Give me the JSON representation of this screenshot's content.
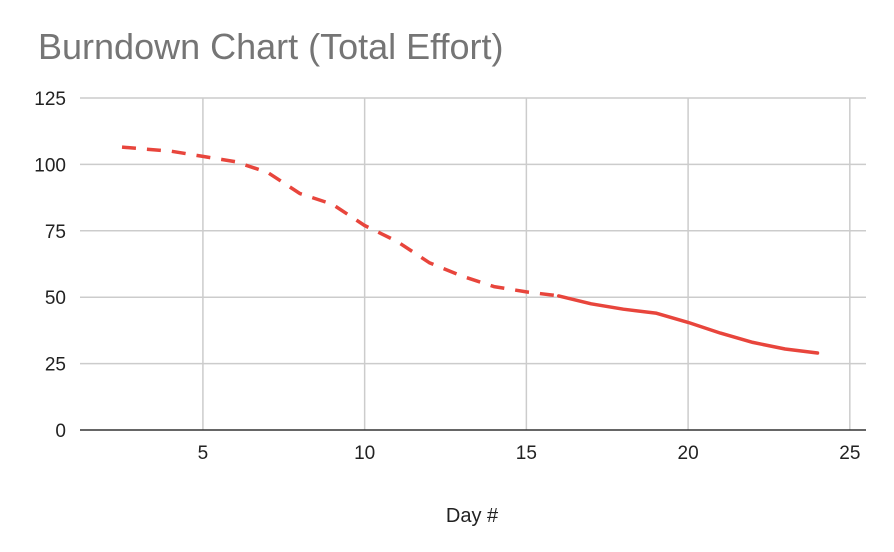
{
  "chart_data": {
    "type": "line",
    "title": "Burndown Chart (Total Effort)",
    "xlabel": "Day #",
    "ylabel": "",
    "xlim": [
      1.2,
      25.5
    ],
    "ylim": [
      0,
      125
    ],
    "xticks": [
      5,
      10,
      15,
      20,
      25
    ],
    "yticks": [
      0,
      25,
      50,
      75,
      100,
      125
    ],
    "grid": true,
    "colors": {
      "line": "#e8453c",
      "grid": "#cccccc",
      "axis": "#333333",
      "title": "#757575"
    },
    "series": [
      {
        "style": "dashed",
        "x": [
          2.5,
          3,
          4,
          5,
          6,
          7,
          8,
          9,
          10,
          11,
          12,
          13,
          14,
          15,
          16
        ],
        "y": [
          106.5,
          106,
          105,
          103,
          101,
          97,
          89,
          85,
          77,
          71,
          63,
          58,
          54,
          52,
          50.5
        ]
      },
      {
        "style": "solid",
        "x": [
          16,
          17,
          18,
          19,
          20,
          21,
          22,
          23,
          24
        ],
        "y": [
          50.5,
          47.5,
          45.5,
          44,
          40.5,
          36.5,
          33,
          30.5,
          29
        ]
      }
    ]
  }
}
